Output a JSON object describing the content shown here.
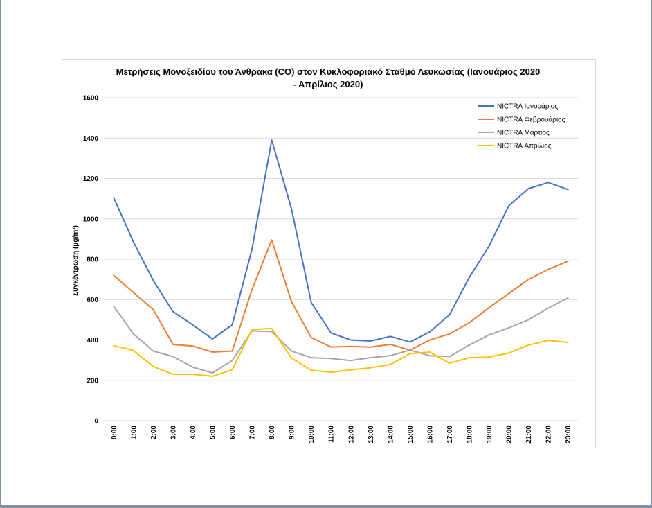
{
  "chart_data": {
    "type": "line",
    "title_line1": "Μετρήσεις Μονοξειδίου του Άνθρακα (CO) στον Κυκλοφοριακό Σταθμό Λευκωσίας (Ιανουάριος 2020",
    "title_line2": "- Απρίλιος 2020)",
    "ylabel": "Συγκέντρωση (μg/m³)",
    "ylim": [
      0,
      1600
    ],
    "yticks": [
      0,
      200,
      400,
      600,
      800,
      1000,
      1200,
      1400,
      1600
    ],
    "grid": true,
    "legend_position": "top-right",
    "categories": [
      "0:00",
      "1:00",
      "2:00",
      "3:00",
      "4:00",
      "5:00",
      "6:00",
      "7:00",
      "8:00",
      "9:00",
      "10:00",
      "11:00",
      "12:00",
      "13:00",
      "14:00",
      "15:00",
      "16:00",
      "17:00",
      "18:00",
      "19:00",
      "20:00",
      "21:00",
      "22:00",
      "23:00"
    ],
    "series": [
      {
        "name": "NICTRA Ιανουάριος",
        "color": "#4472c4",
        "values": [
          1105,
          885,
          695,
          540,
          475,
          405,
          475,
          850,
          1390,
          1050,
          585,
          435,
          400,
          395,
          418,
          390,
          440,
          525,
          710,
          865,
          1065,
          1150,
          1180,
          1145
        ]
      },
      {
        "name": "NICTRA Φεβρουάριος",
        "color": "#ed7d31",
        "values": [
          720,
          635,
          550,
          378,
          370,
          340,
          345,
          650,
          895,
          590,
          412,
          365,
          368,
          365,
          378,
          350,
          400,
          430,
          485,
          560,
          630,
          700,
          750,
          790
        ]
      },
      {
        "name": "NICTRA Μάρτιος",
        "color": "#a5a5a5",
        "values": [
          567,
          430,
          345,
          318,
          265,
          237,
          298,
          445,
          442,
          345,
          312,
          308,
          298,
          312,
          322,
          350,
          322,
          318,
          375,
          425,
          460,
          500,
          558,
          608
        ]
      },
      {
        "name": "NICTRA Απρίλιος",
        "color": "#ffc000",
        "values": [
          372,
          348,
          268,
          230,
          230,
          220,
          252,
          452,
          457,
          310,
          250,
          240,
          252,
          262,
          278,
          332,
          340,
          285,
          312,
          315,
          335,
          375,
          398,
          388
        ]
      }
    ]
  }
}
